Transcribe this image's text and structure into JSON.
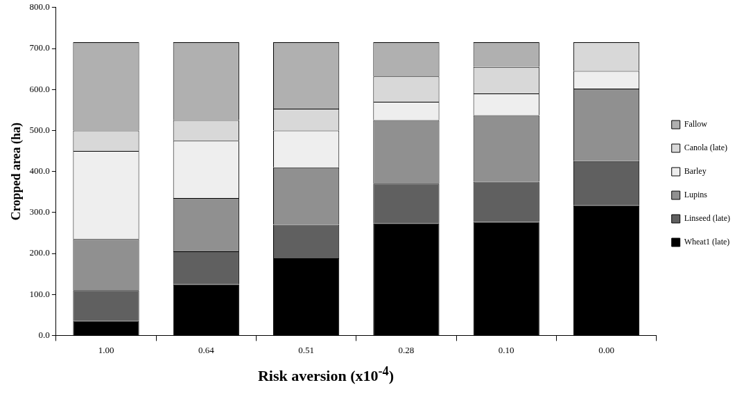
{
  "chart_data": {
    "type": "bar",
    "stacked": true,
    "xlabel": "Risk aversion (x10$^{-4}$)",
    "ylabel": "Cropped area (ha)",
    "categories": [
      "1.00",
      "0.64",
      "0.51",
      "0.28",
      "0.10",
      "0.00"
    ],
    "series": [
      {
        "name": "Wheat1 (late)",
        "color": "#000000",
        "values": [
          35,
          125,
          188,
          273,
          277,
          317
        ]
      },
      {
        "name": "Linseed (late)",
        "color": "#606060",
        "values": [
          75,
          80,
          82,
          97,
          98,
          108
        ]
      },
      {
        "name": "Lupins",
        "color": "#909090",
        "values": [
          125,
          130,
          140,
          155,
          162,
          177
        ]
      },
      {
        "name": "Barley",
        "color": "#eeeeee",
        "values": [
          215,
          140,
          90,
          45,
          53,
          43
        ]
      },
      {
        "name": "Canola (late)",
        "color": "#d8d8d8",
        "values": [
          50,
          50,
          53,
          62,
          65,
          70
        ]
      },
      {
        "name": "Fallow",
        "color": "#b0b0b0",
        "values": [
          215,
          190,
          162,
          83,
          60,
          0
        ]
      }
    ],
    "ylim": [
      0,
      800
    ],
    "yticks": [
      {
        "value": 0,
        "label": "0.0"
      },
      {
        "value": 100,
        "label": "100.0"
      },
      {
        "value": 200,
        "label": "200.0"
      },
      {
        "value": 300,
        "label": "300.0"
      },
      {
        "value": 400,
        "label": "400.0"
      },
      {
        "value": 500,
        "label": "500.0"
      },
      {
        "value": 600,
        "label": "600.0"
      },
      {
        "value": 700,
        "label": "700.0"
      },
      {
        "value": 800,
        "label": "800.0"
      }
    ],
    "grid": false,
    "legend": "right"
  }
}
